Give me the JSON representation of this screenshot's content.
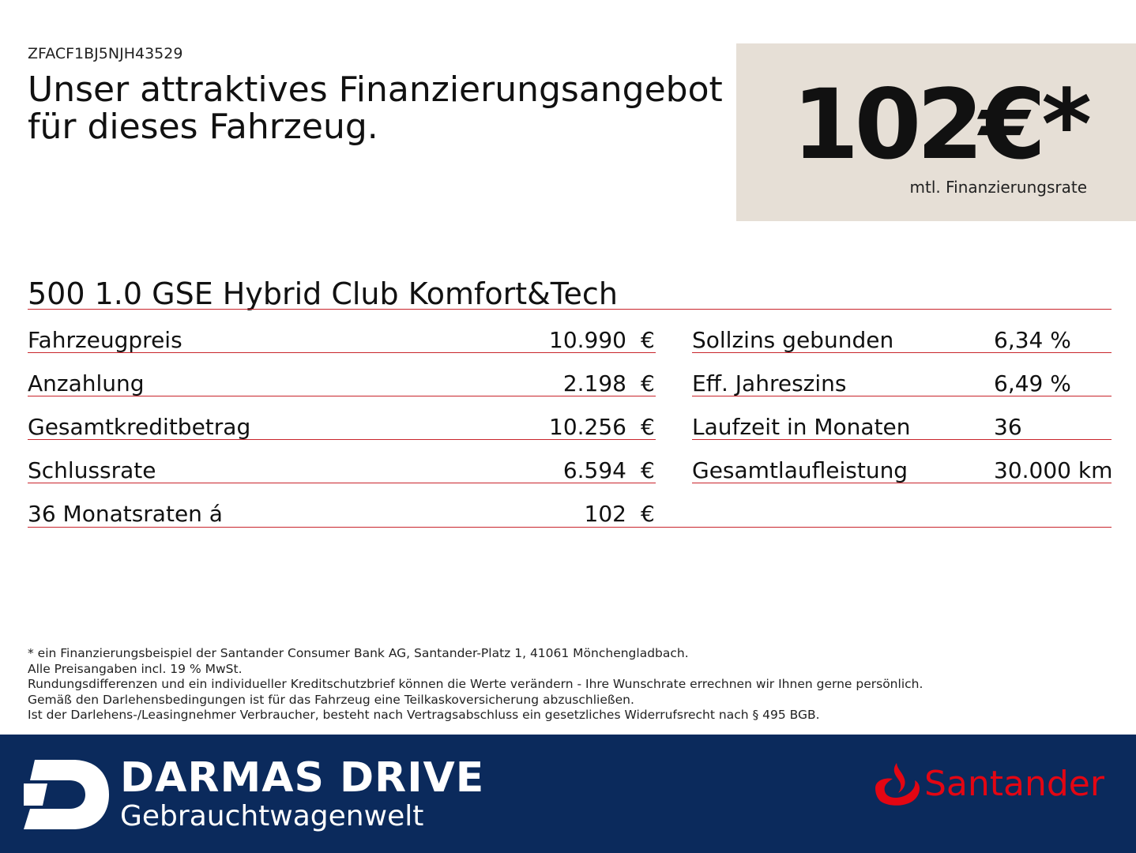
{
  "vin": "ZFACF1BJ5NJH43529",
  "headline": [
    "Unser attraktives Finanzierungsangebot",
    "für dieses Fahrzeug."
  ],
  "rate": {
    "amount": "102€*",
    "label": "mtl. Finanzierungsrate"
  },
  "model": "500 1.0 GSE Hybrid Club Komfort&Tech",
  "currency": "€",
  "left_rows": [
    {
      "label": "Fahrzeugpreis",
      "value": "10.990"
    },
    {
      "label": "Anzahlung",
      "value": "2.198"
    },
    {
      "label": "Gesamtkreditbetrag",
      "value": "10.256"
    },
    {
      "label": "Schlussrate",
      "value": "6.594"
    },
    {
      "label": "36 Monatsraten á",
      "value": "102"
    }
  ],
  "right_rows": [
    {
      "label": "Sollzins gebunden",
      "value": "6,34 %"
    },
    {
      "label": "Eff. Jahreszins",
      "value": "6,49 %"
    },
    {
      "label": "Laufzeit in Monaten",
      "value": "36"
    },
    {
      "label": "Gesamtlaufleistung",
      "value": "30.000 km"
    }
  ],
  "footnote": [
    "* ein Finanzierungsbeispiel der Santander Consumer Bank AG, Santander-Platz 1, 41061 Mönchengladbach.",
    "Alle Preisangaben incl. 19 % MwSt.",
    "Rundungsdifferenzen und ein individueller Kreditschutzbrief können die Werte verändern - Ihre Wunschrate errechnen wir Ihnen gerne persönlich.",
    "Gemäß den Darlehensbedingungen ist für das Fahrzeug eine Teilkaskoversicherung abzuschließen.",
    "Ist der Darlehens-/Leasingnehmer Verbraucher, besteht nach Vertragsabschluss ein gesetzliches Widerrufsrecht nach § 495 BGB."
  ],
  "footer": {
    "brand_line1": "DARMAS DRIVE",
    "brand_line2": "Gebrauchtwagenwelt",
    "partner": "Santander"
  },
  "colors": {
    "accent_red": "#c9252c",
    "footer_bg": "#0b2a5c",
    "rate_bg": "#e6dfd6",
    "santander_red": "#e30613"
  }
}
